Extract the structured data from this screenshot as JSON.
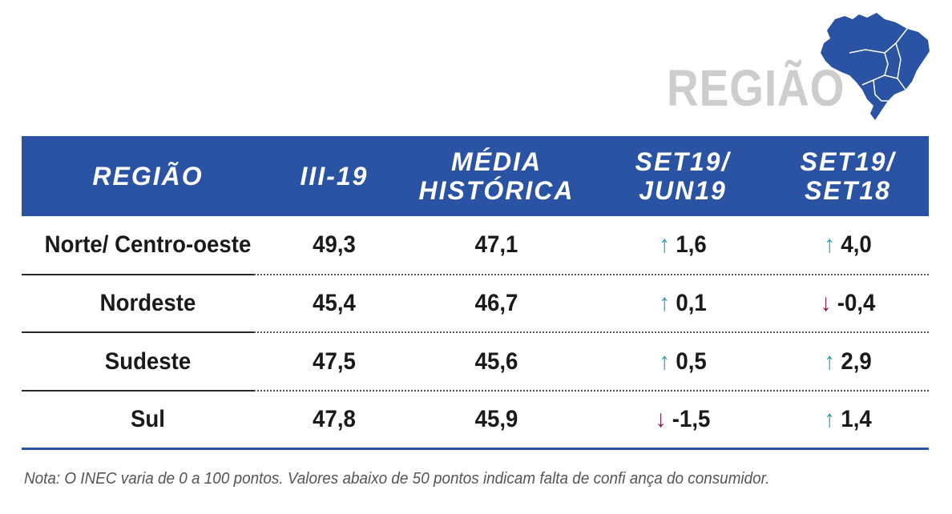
{
  "title": "REGIÃO",
  "colors": {
    "header_bg": "#2b53a3",
    "up": "#2b9fb3",
    "down": "#7b1f33",
    "title": "#cdcdcd"
  },
  "table": {
    "headers": [
      {
        "lines": [
          "REGIÃO"
        ]
      },
      {
        "lines": [
          "III-19"
        ]
      },
      {
        "lines": [
          "MÉDIA",
          "HISTÓRICA"
        ]
      },
      {
        "lines": [
          "SET19/",
          "JUN19"
        ]
      },
      {
        "lines": [
          "SET19/",
          "SET18"
        ]
      }
    ],
    "rows": [
      {
        "regiao": "Norte/ Centro-oeste",
        "iii19": "49,3",
        "media": "47,1",
        "set_jun": "1,6",
        "set_jun_dir": "up",
        "set_set": "4,0",
        "set_set_dir": "up"
      },
      {
        "regiao": "Nordeste",
        "iii19": "45,4",
        "media": "46,7",
        "set_jun": "0,1",
        "set_jun_dir": "up",
        "set_set": "-0,4",
        "set_set_dir": "down"
      },
      {
        "regiao": "Sudeste",
        "iii19": "47,5",
        "media": "45,6",
        "set_jun": "0,5",
        "set_jun_dir": "up",
        "set_set": "2,9",
        "set_set_dir": "up"
      },
      {
        "regiao": "Sul",
        "iii19": "47,8",
        "media": "45,9",
        "set_jun": "-1,5",
        "set_jun_dir": "down",
        "set_set": "1,4",
        "set_set_dir": "up"
      }
    ]
  },
  "note": "Nota: O INEC varia de 0 a 100 pontos. Valores abaixo de 50 pontos indicam falta de confi ança do consumidor.",
  "icons": {
    "map": "brazil-map-icon",
    "up": "arrow-up-icon",
    "down": "arrow-down-icon"
  }
}
